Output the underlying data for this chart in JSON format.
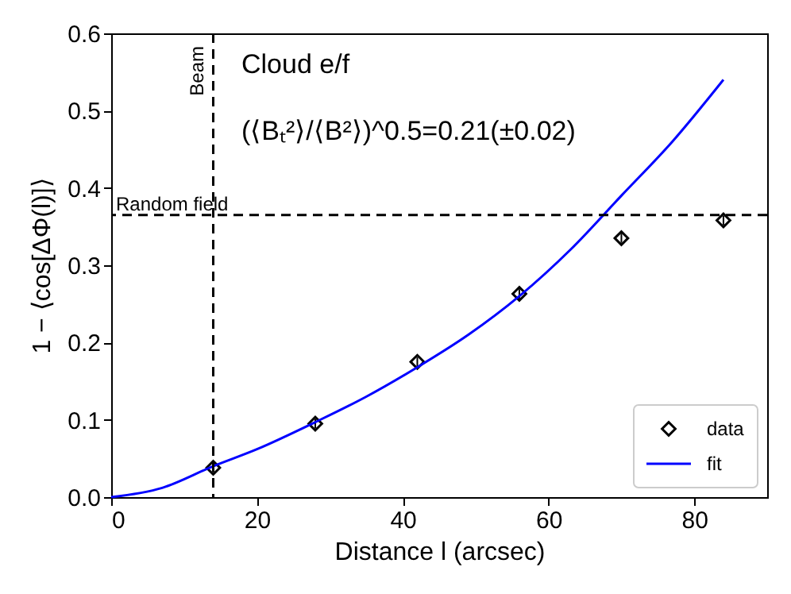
{
  "chart_data": {
    "type": "scatter",
    "xlabel": "Distance l (arcsec)",
    "ylabel": "1 − ⟨cos[ΔΦ(l)]⟩",
    "xlim": [
      0,
      90
    ],
    "xticks": [
      0,
      20,
      40,
      60,
      80
    ],
    "ylim": [
      0,
      0.6
    ],
    "yticks": [
      {
        "value": 0,
        "label": "0.0"
      },
      {
        "value": 0.1,
        "label": "0.1"
      },
      {
        "value": 0.2,
        "label": "0.2"
      },
      {
        "value": 0.3,
        "label": "0.3"
      },
      {
        "value": 0.4,
        "label": "0.4"
      },
      {
        "value": 0.5,
        "label": "0.5"
      },
      {
        "value": 0.6,
        "label": "0.6"
      }
    ],
    "annotations": [
      "Cloud e/f",
      "(⟨Bₜ²⟩/⟨B²⟩)^0.5=0.21(±0.02)"
    ],
    "ref_lines": [
      {
        "axis": "x",
        "value": 14,
        "label": "Beam",
        "color": "#000000",
        "line_style": "dashed"
      },
      {
        "axis": "y",
        "value": 0.365,
        "label": "Random field",
        "color": "#000000",
        "line_style": "dashed"
      }
    ],
    "legend": "bottom right",
    "grid": false,
    "series": [
      {
        "name": "data",
        "color": "#000000",
        "marker": "diamond",
        "x": [
          14,
          28,
          42,
          56,
          70,
          84
        ],
        "values": [
          0.038,
          0.095,
          0.175,
          0.263,
          0.335,
          0.358
        ],
        "errors": [
          0.006,
          0.006,
          0.006,
          0.006,
          0.006,
          0.006
        ]
      },
      {
        "name": "fit",
        "type": "line",
        "color": "#0000ff",
        "line_style": "solid",
        "marker": "none",
        "x": [
          0,
          7,
          14,
          20,
          28,
          35,
          42,
          49,
          56,
          63,
          70,
          77,
          84
        ],
        "values": [
          0,
          0.012,
          0.04,
          0.062,
          0.097,
          0.13,
          0.168,
          0.21,
          0.26,
          0.32,
          0.39,
          0.46,
          0.54
        ]
      }
    ]
  }
}
